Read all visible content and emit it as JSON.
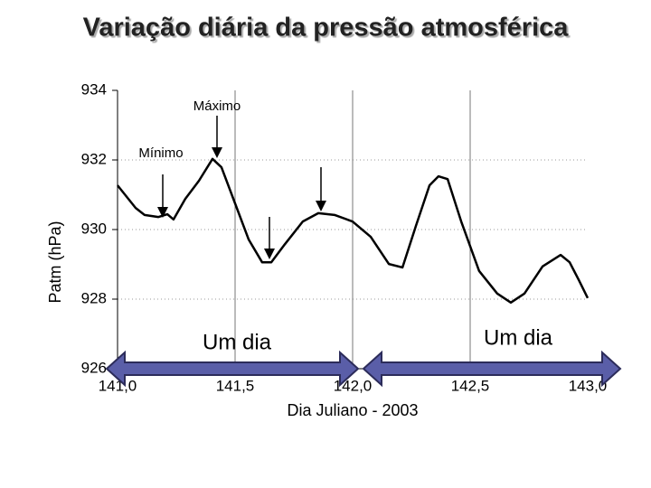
{
  "chart_data": {
    "type": "line",
    "title": "Variação diária da pressão atmosférica",
    "x_label": "Dia Juliano  - 2003",
    "y_label": "Patm (hPa)",
    "annotations": [
      "Máximo",
      "Mínimo",
      "Um dia",
      "Um dia"
    ],
    "x": [
      141.0,
      141.077,
      141.115,
      141.173,
      141.212,
      141.238,
      141.288,
      141.346,
      141.404,
      141.442,
      141.5,
      141.558,
      141.615,
      141.654,
      141.712,
      141.788,
      141.854,
      141.923,
      142.0,
      142.077,
      142.154,
      142.212,
      142.269,
      142.327,
      142.365,
      142.404,
      142.462,
      142.538,
      142.615,
      142.673,
      142.731,
      142.808,
      142.885,
      142.923,
      142.962,
      143.0
    ],
    "series": [
      {
        "name": "Pressão",
        "color": "#000000",
        "values": [
          931.27,
          930.62,
          930.42,
          930.36,
          930.44,
          930.29,
          930.88,
          931.4,
          932.03,
          931.79,
          930.75,
          929.71,
          929.06,
          929.06,
          929.58,
          930.23,
          930.47,
          930.42,
          930.23,
          929.79,
          929.01,
          928.91,
          930.1,
          931.27,
          931.53,
          931.45,
          930.23,
          928.81,
          928.16,
          927.9,
          928.16,
          928.94,
          929.27,
          929.06,
          928.55,
          928.03
        ]
      }
    ],
    "xlim": [
      141.0,
      143.0
    ],
    "xticks": [
      {
        "value": 141.0,
        "label": "141,0"
      },
      {
        "value": 141.5,
        "label": "141,5"
      },
      {
        "value": 142.0,
        "label": "142,0"
      },
      {
        "value": 142.5,
        "label": "142,5"
      },
      {
        "value": 143.0,
        "label": "143,0"
      }
    ],
    "ylim": [
      926,
      934
    ],
    "yticks": [
      926,
      928,
      930,
      932,
      934
    ],
    "grid": true
  }
}
